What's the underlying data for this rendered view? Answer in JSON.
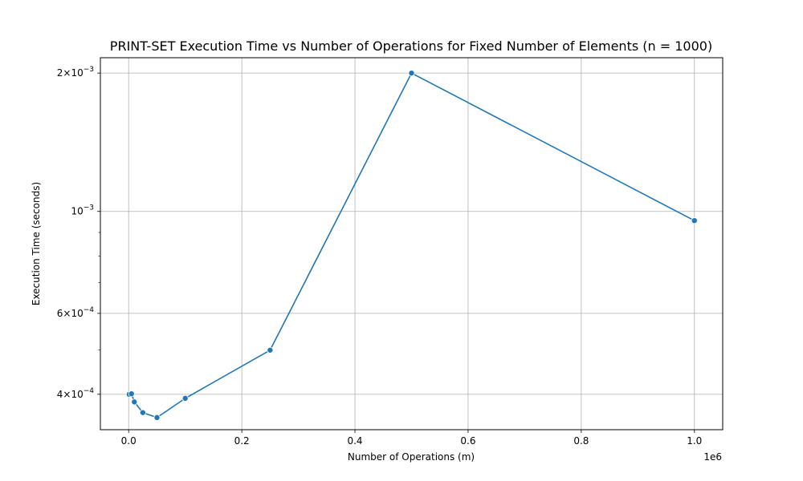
{
  "chart_data": {
    "type": "line",
    "title": "PRINT-SET Execution Time vs Number of Operations for Fixed Number of Elements (n = 1000)",
    "xlabel": "Number of Operations (m)",
    "ylabel": "Execution Time (seconds)",
    "x_offset_label": "1e6",
    "x_scale": "linear",
    "y_scale": "log",
    "xlim": [
      -50000,
      1050000
    ],
    "ylim": [
      0.000335,
      0.00216
    ],
    "grid": true,
    "color": "#1f77b4",
    "x_ticks": [
      {
        "value": 0,
        "label": "0.0"
      },
      {
        "value": 200000,
        "label": "0.2"
      },
      {
        "value": 400000,
        "label": "0.4"
      },
      {
        "value": 600000,
        "label": "0.6"
      },
      {
        "value": 800000,
        "label": "0.8"
      },
      {
        "value": 1000000,
        "label": "1.0"
      }
    ],
    "y_major_ticks": [
      {
        "value": 0.0004,
        "mantissa": "4",
        "base": "10",
        "exp": "−4"
      },
      {
        "value": 0.0006,
        "mantissa": "6",
        "base": "10",
        "exp": "−4"
      },
      {
        "value": 0.001,
        "mantissa": "",
        "base": "10",
        "exp": "−3"
      },
      {
        "value": 0.002,
        "mantissa": "2",
        "base": "10",
        "exp": "−3"
      }
    ],
    "y_minor_ticks": [
      0.0005,
      0.0007,
      0.0008,
      0.0009
    ],
    "series": [
      {
        "x": [
          1000,
          5000,
          10000,
          25000,
          50000,
          100000,
          250000,
          500000,
          1000000
        ],
        "y": [
          0.0004,
          0.000401,
          0.000385,
          0.000365,
          0.000356,
          0.000392,
          0.000499,
          0.002,
          0.000955
        ]
      }
    ]
  }
}
